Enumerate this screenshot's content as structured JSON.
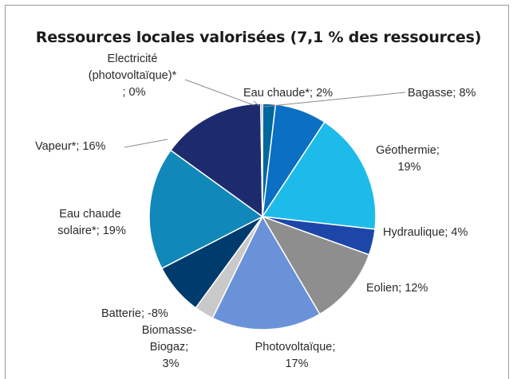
{
  "chart_data": {
    "type": "pie",
    "title": "Ressources locales valorisées (7,1 % des ressources)",
    "slices": [
      {
        "label": "Eau chaude*; 2%",
        "value": 2,
        "color": "#00689d"
      },
      {
        "label": "Bagasse; 8%",
        "value": 8,
        "color": "#0b6fc4"
      },
      {
        "label": "Géothermie; 19%",
        "value": 19,
        "color": "#1dbbea"
      },
      {
        "label": "Hydraulique; 4%",
        "value": 4,
        "color": "#1c47a8"
      },
      {
        "label": "Eolien; 12%",
        "value": 12,
        "color": "#8e8e8e"
      },
      {
        "label": "Photovoltaïque; 17%",
        "value": 17,
        "color": "#6a92d9"
      },
      {
        "label": "Biomasse-Biogaz; 3%",
        "value": 3,
        "color": "#c9c9c9"
      },
      {
        "label": "Batterie; -8%",
        "value": -8,
        "color": "#003b6d"
      },
      {
        "label": "Eau chaude solaire*; 19%",
        "value": 19,
        "color": "#1088b9"
      },
      {
        "label": "Vapeur*; 16%",
        "value": 16,
        "color": "#1d2b6e"
      },
      {
        "label": "Electricité (photovoltaïque)*; 0%",
        "value": 0,
        "color": "#6d6d6d"
      }
    ],
    "legend": "none"
  },
  "labels": {
    "eau_chaude": "Eau chaude*; 2%",
    "bagasse": "Bagasse; 8%",
    "geothermie_1": "Géothermie;",
    "geothermie_2": "19%",
    "hydraulique": "Hydraulique; 4%",
    "eolien": "Eolien; 12%",
    "photovoltaique_1": "Photovoltaïque;",
    "photovoltaique_2": "17%",
    "biomasse_1": "Biomasse-",
    "biomasse_2": "Biogaz;",
    "biomasse_3": "3%",
    "batterie": "Batterie; -8%",
    "eau_chaude_solaire_1": "Eau chaude",
    "eau_chaude_solaire_2": "solaire*; 19%",
    "vapeur": "Vapeur*; 16%",
    "electricite_1": "Electricité",
    "electricite_2": "(photovoltaïque)*",
    "electricite_3": "; 0%"
  }
}
